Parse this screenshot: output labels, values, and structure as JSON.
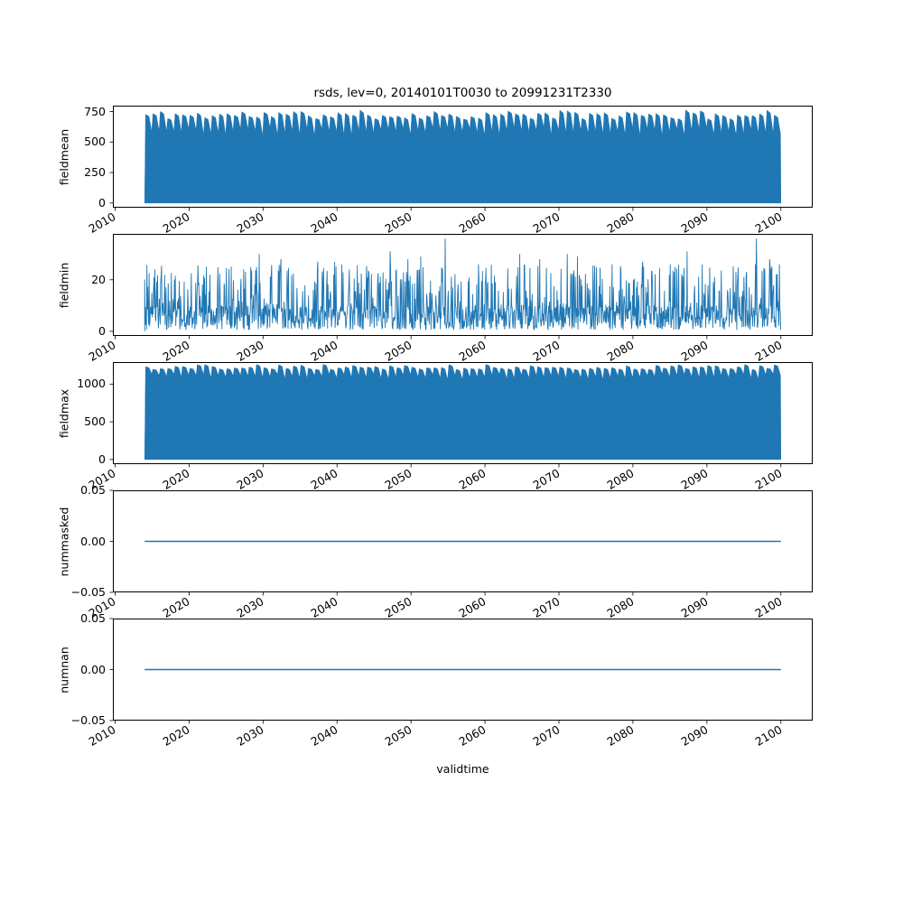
{
  "figure": {
    "title": "rsds, lev=0, 20140101T0030 to 20991231T2330",
    "xlabel": "validtime",
    "background_color": "#ffffff",
    "series_color": "#1f77b4",
    "frame_color": "#000000",
    "text_color": "#000000"
  },
  "chart_data": [
    {
      "type": "area",
      "name": "fieldmean",
      "ylabel": "fieldmean",
      "xlim": [
        2009.7,
        2104.3
      ],
      "ylim": [
        -38,
        798
      ],
      "x_data_range": [
        2014.0,
        2100.0
      ],
      "xticks": [
        2010,
        2020,
        2030,
        2040,
        2050,
        2060,
        2070,
        2080,
        2090,
        2100
      ],
      "yticks": [
        0,
        250,
        500,
        750
      ],
      "ytick_labels": [
        "0",
        "250",
        "500",
        "750"
      ],
      "style": "annual-comb-fill",
      "seed": 11,
      "annual_peak_range": [
        688,
        762
      ],
      "annual_trough_range": [
        548,
        618
      ],
      "baseline": 0,
      "grid": false,
      "legend": false
    },
    {
      "type": "line",
      "name": "fieldmin",
      "ylabel": "fieldmin",
      "xlim": [
        2009.7,
        2104.3
      ],
      "ylim": [
        -1.8,
        37.8
      ],
      "x_data_range": [
        2014.0,
        2100.0
      ],
      "xticks": [
        2010,
        2020,
        2030,
        2040,
        2050,
        2060,
        2070,
        2080,
        2090,
        2100
      ],
      "yticks": [
        0,
        20
      ],
      "ytick_labels": [
        "0",
        "20"
      ],
      "style": "noisy-spikes",
      "seed": 23,
      "baseline_range": [
        0.5,
        10
      ],
      "spike_range": [
        10,
        26
      ],
      "spike_probability": 0.25,
      "tall_spikes": [
        {
          "x": 2015.4,
          "y": 24
        },
        {
          "x": 2022.8,
          "y": 22
        },
        {
          "x": 2029.5,
          "y": 30
        },
        {
          "x": 2032.4,
          "y": 28
        },
        {
          "x": 2037.4,
          "y": 27
        },
        {
          "x": 2039.7,
          "y": 27
        },
        {
          "x": 2047.2,
          "y": 31
        },
        {
          "x": 2049.6,
          "y": 28
        },
        {
          "x": 2051.3,
          "y": 29
        },
        {
          "x": 2054.6,
          "y": 36
        },
        {
          "x": 2059.1,
          "y": 26
        },
        {
          "x": 2064.7,
          "y": 30
        },
        {
          "x": 2067.4,
          "y": 28
        },
        {
          "x": 2071.1,
          "y": 30
        },
        {
          "x": 2072.5,
          "y": 29
        },
        {
          "x": 2077.2,
          "y": 26
        },
        {
          "x": 2081.3,
          "y": 27
        },
        {
          "x": 2087.3,
          "y": 31
        },
        {
          "x": 2096.7,
          "y": 36
        },
        {
          "x": 2098.5,
          "y": 28
        }
      ],
      "grid": false,
      "legend": false
    },
    {
      "type": "area",
      "name": "fieldmax",
      "ylabel": "fieldmax",
      "xlim": [
        2009.7,
        2104.3
      ],
      "ylim": [
        -61.5,
        1291.5
      ],
      "x_data_range": [
        2014.0,
        2100.0
      ],
      "xticks": [
        2010,
        2020,
        2030,
        2040,
        2050,
        2060,
        2070,
        2080,
        2090,
        2100
      ],
      "yticks": [
        0,
        500,
        1000
      ],
      "ytick_labels": [
        "0",
        "500",
        "1000"
      ],
      "style": "annual-comb-fill",
      "seed": 37,
      "annual_peak_range": [
        1195,
        1262
      ],
      "annual_trough_range": [
        1058,
        1135
      ],
      "baseline": 0,
      "grid": false,
      "legend": false
    },
    {
      "type": "line",
      "name": "nummasked",
      "ylabel": "nummasked",
      "xlim": [
        2009.7,
        2104.3
      ],
      "ylim": [
        -0.05,
        0.05
      ],
      "x_data_range": [
        2014.0,
        2100.0
      ],
      "xticks": [
        2010,
        2020,
        2030,
        2040,
        2050,
        2060,
        2070,
        2080,
        2090,
        2100
      ],
      "yticks": [
        -0.05,
        0,
        0.05
      ],
      "ytick_labels": [
        "−0.05",
        "0.00",
        "0.05"
      ],
      "style": "constant-line",
      "value": 0.0,
      "x": [
        2014.0,
        2100.0
      ],
      "y": [
        0.0,
        0.0
      ],
      "grid": false,
      "legend": false
    },
    {
      "type": "line",
      "name": "numnan",
      "ylabel": "numnan",
      "xlim": [
        2009.7,
        2104.3
      ],
      "ylim": [
        -0.05,
        0.05
      ],
      "x_data_range": [
        2014.0,
        2100.0
      ],
      "xticks": [
        2010,
        2020,
        2030,
        2040,
        2050,
        2060,
        2070,
        2080,
        2090,
        2100
      ],
      "yticks": [
        -0.05,
        0,
        0.05
      ],
      "ytick_labels": [
        "−0.05",
        "0.00",
        "0.05"
      ],
      "style": "constant-line",
      "value": 0.0,
      "x": [
        2014.0,
        2100.0
      ],
      "y": [
        0.0,
        0.0
      ],
      "grid": false,
      "legend": false
    }
  ]
}
